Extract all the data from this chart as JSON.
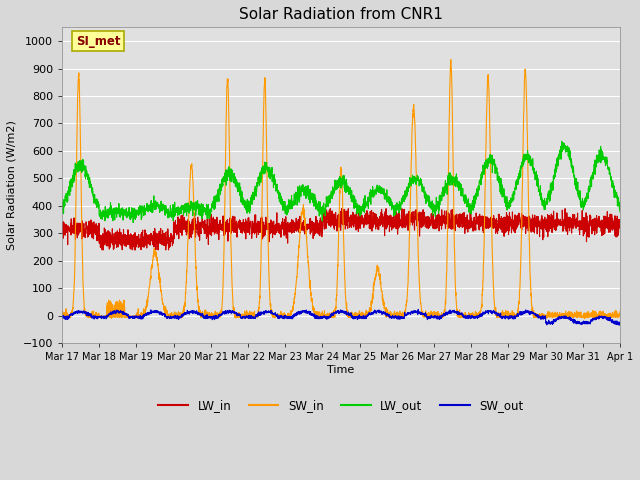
{
  "title": "Solar Radiation from CNR1",
  "xlabel": "Time",
  "ylabel": "Solar Radiation (W/m2)",
  "ylim": [
    -100,
    1050
  ],
  "yticks": [
    -100,
    0,
    100,
    200,
    300,
    400,
    500,
    600,
    700,
    800,
    900,
    1000
  ],
  "annotation": "SI_met",
  "fig_bg_color": "#d8d8d8",
  "plot_bg_color": "#e0e0e0",
  "grid_color": "#ffffff",
  "colors": {
    "LW_in": "#cc0000",
    "SW_in": "#ff9900",
    "LW_out": "#00cc00",
    "SW_out": "#0000cc"
  },
  "x_start": 17,
  "x_end": 32,
  "xtick_labels": [
    "Mar 17",
    "Mar 18",
    "Mar 19",
    "Mar 20",
    "Mar 21",
    "Mar 22",
    "Mar 23",
    "Mar 24",
    "Mar 25",
    "Mar 26",
    "Mar 27",
    "Mar 28",
    "Mar 29",
    "Mar 30",
    "Mar 31",
    "Apr 1"
  ],
  "xtick_positions": [
    17,
    18,
    19,
    20,
    21,
    22,
    23,
    24,
    25,
    26,
    27,
    28,
    29,
    30,
    31,
    32
  ],
  "figsize": [
    6.4,
    4.8
  ],
  "dpi": 100,
  "sw_in_peaks": [
    870,
    75,
    230,
    550,
    860,
    860,
    380,
    530,
    170,
    760,
    930,
    870,
    890,
    0,
    0
  ],
  "sw_in_widths": [
    0.06,
    0.15,
    0.12,
    0.08,
    0.06,
    0.06,
    0.12,
    0.06,
    0.1,
    0.08,
    0.06,
    0.07,
    0.07,
    0.06,
    0.06
  ],
  "sw_in_centers": [
    0.45,
    0.45,
    0.5,
    0.48,
    0.45,
    0.45,
    0.48,
    0.5,
    0.48,
    0.45,
    0.45,
    0.45,
    0.45,
    0.45,
    0.45
  ],
  "lw_in_base": 310,
  "lw_in_noise": 18,
  "lw_out_base": 370,
  "lw_out_noise": 12,
  "sw_out_max": 20,
  "sw_out_neg": -30
}
